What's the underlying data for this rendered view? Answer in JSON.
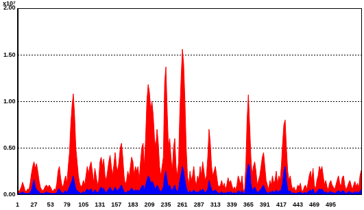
{
  "chart_data": {
    "type": "area",
    "annotation": "x10⁷",
    "x": [
      1,
      3,
      5,
      7,
      9,
      11,
      13,
      15,
      17,
      19,
      21,
      23,
      25,
      27,
      29,
      31,
      33,
      35,
      37,
      39,
      41,
      43,
      45,
      47,
      49,
      51,
      53,
      55,
      57,
      59,
      61,
      63,
      65,
      67,
      69,
      71,
      73,
      75,
      77,
      79,
      81,
      83,
      85,
      87,
      89,
      91,
      93,
      95,
      97,
      99,
      101,
      103,
      105,
      107,
      109,
      111,
      113,
      115,
      117,
      119,
      121,
      123,
      125,
      127,
      129,
      131,
      133,
      135,
      137,
      139,
      141,
      143,
      145,
      147,
      149,
      151,
      153,
      155,
      157,
      159,
      161,
      163,
      165,
      167,
      169,
      171,
      173,
      175,
      177,
      179,
      181,
      183,
      185,
      187,
      189,
      191,
      193,
      195,
      197,
      199,
      201,
      203,
      205,
      207,
      209,
      211,
      213,
      215,
      217,
      219,
      221,
      223,
      225,
      227,
      229,
      231,
      233,
      235,
      237,
      239,
      241,
      243,
      245,
      247,
      249,
      251,
      253,
      255,
      257,
      259,
      261,
      263,
      265,
      267,
      269,
      271,
      273,
      275,
      277,
      279,
      281,
      283,
      285,
      287,
      289,
      291,
      293,
      295,
      297,
      299,
      301,
      303,
      305,
      307,
      309,
      311,
      313,
      315,
      317,
      319,
      321,
      323,
      325,
      327,
      329,
      331,
      333,
      335,
      337,
      339,
      341,
      343,
      345,
      347,
      349,
      351,
      353,
      355,
      357,
      359,
      361,
      363,
      365,
      367,
      369,
      371,
      373,
      375,
      377,
      379,
      381,
      383,
      385,
      387,
      389,
      391,
      393,
      395,
      397,
      399,
      401,
      403,
      405,
      407,
      409,
      411,
      413,
      415,
      417,
      419,
      421,
      423,
      425,
      427,
      429,
      431,
      433,
      435,
      437,
      439,
      441,
      443,
      445,
      447,
      449,
      451,
      453,
      455,
      457,
      459,
      461,
      463,
      465,
      467,
      469,
      471,
      473,
      475,
      477,
      479,
      481,
      483,
      485,
      487,
      489,
      491,
      493,
      495,
      497,
      499,
      501,
      503,
      505,
      507,
      509,
      511,
      513,
      515,
      517,
      519,
      521,
      523,
      525,
      527,
      529,
      531,
      533,
      535,
      537,
      539,
      541,
      543
    ],
    "series": [
      {
        "color": "#ff0000",
        "values": [
          0.02,
          0.03,
          0.05,
          0.08,
          0.13,
          0.09,
          0.04,
          0.03,
          0.06,
          0.05,
          0.12,
          0.22,
          0.3,
          0.35,
          0.28,
          0.33,
          0.25,
          0.15,
          0.08,
          0.05,
          0.04,
          0.06,
          0.09,
          0.1,
          0.07,
          0.1,
          0.08,
          0.05,
          0.03,
          0.06,
          0.05,
          0.12,
          0.25,
          0.3,
          0.18,
          0.1,
          0.08,
          0.15,
          0.2,
          0.12,
          0.3,
          0.45,
          0.75,
          0.95,
          1.08,
          0.85,
          0.5,
          0.35,
          0.2,
          0.12,
          0.08,
          0.1,
          0.15,
          0.1,
          0.2,
          0.3,
          0.22,
          0.3,
          0.35,
          0.25,
          0.12,
          0.28,
          0.2,
          0.1,
          0.15,
          0.35,
          0.4,
          0.3,
          0.38,
          0.2,
          0.15,
          0.25,
          0.35,
          0.42,
          0.3,
          0.2,
          0.32,
          0.45,
          0.3,
          0.25,
          0.35,
          0.5,
          0.55,
          0.4,
          0.2,
          0.1,
          0.15,
          0.25,
          0.18,
          0.3,
          0.4,
          0.35,
          0.2,
          0.3,
          0.25,
          0.3,
          0.15,
          0.35,
          0.5,
          0.55,
          0.3,
          0.6,
          1.0,
          1.18,
          1.1,
          0.9,
          1.0,
          0.85,
          0.6,
          0.5,
          0.7,
          0.55,
          0.3,
          0.2,
          0.3,
          0.4,
          1.2,
          1.37,
          0.9,
          0.5,
          0.6,
          0.4,
          0.25,
          0.5,
          0.6,
          0.3,
          0.2,
          0.35,
          0.9,
          1.25,
          1.56,
          1.4,
          1.0,
          0.5,
          0.2,
          0.1,
          0.25,
          0.15,
          0.2,
          0.3,
          0.15,
          0.1,
          0.2,
          0.15,
          0.3,
          0.2,
          0.35,
          0.25,
          0.15,
          0.2,
          0.4,
          0.7,
          0.55,
          0.3,
          0.2,
          0.25,
          0.3,
          0.2,
          0.1,
          0.08,
          0.1,
          0.15,
          0.08,
          0.12,
          0.05,
          0.1,
          0.18,
          0.12,
          0.15,
          0.1,
          0.05,
          0.08,
          0.05,
          0.1,
          0.2,
          0.15,
          0.1,
          0.2,
          0.05,
          0.04,
          0.3,
          0.8,
          1.07,
          0.75,
          0.4,
          0.2,
          0.3,
          0.35,
          0.25,
          0.1,
          0.15,
          0.2,
          0.3,
          0.4,
          0.45,
          0.3,
          0.15,
          0.1,
          0.05,
          0.15,
          0.1,
          0.2,
          0.12,
          0.15,
          0.25,
          0.1,
          0.2,
          0.15,
          0.3,
          0.55,
          0.75,
          0.8,
          0.5,
          0.25,
          0.15,
          0.2,
          0.1,
          0.05,
          0.08,
          0.04,
          0.05,
          0.1,
          0.08,
          0.12,
          0.05,
          0.03,
          0.08,
          0.1,
          0.05,
          0.12,
          0.2,
          0.25,
          0.15,
          0.28,
          0.1,
          0.05,
          0.15,
          0.2,
          0.3,
          0.25,
          0.3,
          0.2,
          0.1,
          0.15,
          0.08,
          0.05,
          0.12,
          0.15,
          0.1,
          0.08,
          0.05,
          0.1,
          0.15,
          0.2,
          0.12,
          0.08,
          0.18,
          0.2,
          0.1,
          0.05,
          0.08,
          0.12,
          0.15,
          0.1,
          0.05,
          0.1,
          0.14,
          0.08,
          0.12,
          0.06,
          0.2,
          0.26
        ]
      },
      {
        "color": "#0000ff",
        "values": [
          0,
          0.01,
          0.01,
          0.02,
          0.03,
          0.02,
          0.01,
          0.01,
          0.01,
          0.01,
          0.02,
          0.05,
          0.1,
          0.16,
          0.08,
          0.05,
          0.04,
          0.03,
          0.01,
          0.01,
          0.01,
          0.01,
          0.02,
          0.03,
          0.01,
          0.02,
          0.01,
          0.01,
          0.01,
          0.01,
          0.01,
          0.02,
          0.05,
          0.06,
          0.03,
          0.02,
          0.01,
          0.03,
          0.04,
          0.02,
          0.05,
          0.08,
          0.12,
          0.15,
          0.2,
          0.12,
          0.06,
          0.04,
          0.03,
          0.02,
          0.01,
          0.02,
          0.03,
          0.02,
          0.04,
          0.06,
          0.04,
          0.05,
          0.06,
          0.03,
          0.02,
          0.05,
          0.03,
          0.02,
          0.03,
          0.06,
          0.08,
          0.05,
          0.07,
          0.03,
          0.02,
          0.04,
          0.06,
          0.08,
          0.05,
          0.03,
          0.05,
          0.08,
          0.05,
          0.04,
          0.06,
          0.08,
          0.1,
          0.06,
          0.03,
          0.02,
          0.02,
          0.04,
          0.03,
          0.05,
          0.07,
          0.05,
          0.03,
          0.05,
          0.04,
          0.05,
          0.03,
          0.06,
          0.09,
          0.1,
          0.05,
          0.1,
          0.15,
          0.2,
          0.18,
          0.12,
          0.14,
          0.12,
          0.08,
          0.06,
          0.1,
          0.08,
          0.04,
          0.03,
          0.05,
          0.08,
          0.2,
          0.25,
          0.15,
          0.08,
          0.1,
          0.06,
          0.04,
          0.08,
          0.1,
          0.05,
          0.03,
          0.06,
          0.15,
          0.22,
          0.3,
          0.25,
          0.15,
          0.08,
          0.03,
          0.02,
          0.04,
          0.02,
          0.03,
          0.05,
          0.03,
          0.02,
          0.03,
          0.02,
          0.05,
          0.03,
          0.06,
          0.04,
          0.02,
          0.03,
          0.06,
          0.15,
          0.1,
          0.05,
          0.03,
          0.04,
          0.05,
          0.03,
          0.02,
          0.01,
          0.02,
          0.03,
          0.01,
          0.02,
          0.01,
          0.02,
          0.03,
          0.02,
          0.03,
          0.02,
          0.01,
          0.02,
          0.01,
          0.02,
          0.04,
          0.03,
          0.02,
          0.04,
          0.01,
          0.01,
          0.08,
          0.25,
          0.33,
          0.3,
          0.12,
          0.05,
          0.06,
          0.08,
          0.05,
          0.02,
          0.03,
          0.04,
          0.06,
          0.08,
          0.1,
          0.06,
          0.03,
          0.02,
          0.01,
          0.03,
          0.02,
          0.04,
          0.02,
          0.03,
          0.05,
          0.02,
          0.04,
          0.03,
          0.06,
          0.12,
          0.25,
          0.3,
          0.15,
          0.05,
          0.03,
          0.04,
          0.02,
          0.01,
          0.02,
          0.01,
          0.01,
          0.02,
          0.02,
          0.03,
          0.01,
          0.01,
          0.02,
          0.02,
          0.01,
          0.03,
          0.04,
          0.05,
          0.03,
          0.06,
          0.02,
          0.01,
          0.03,
          0.04,
          0.06,
          0.05,
          0.06,
          0.04,
          0.02,
          0.03,
          0.02,
          0.01,
          0.03,
          0.03,
          0.02,
          0.02,
          0.01,
          0.02,
          0.03,
          0.04,
          0.03,
          0.02,
          0.04,
          0.04,
          0.02,
          0.01,
          0.02,
          0.03,
          0.03,
          0.02,
          0.01,
          0.02,
          0.03,
          0.02,
          0.03,
          0.01,
          0.04,
          0.05
        ]
      }
    ],
    "xlim": [
      1,
      543
    ],
    "xticks": [
      1,
      27,
      53,
      79,
      105,
      131,
      157,
      183,
      209,
      235,
      261,
      287,
      313,
      339,
      365,
      391,
      417,
      443,
      469,
      495
    ],
    "ylim": [
      0,
      2
    ],
    "yticks": [
      {
        "value": 0,
        "label": "0.00"
      },
      {
        "value": 0.5,
        "label": "0.50"
      },
      {
        "value": 1,
        "label": "1.00"
      },
      {
        "value": 1.5,
        "label": "1.50"
      },
      {
        "value": 2,
        "label": "2.00"
      }
    ],
    "grid": true
  }
}
